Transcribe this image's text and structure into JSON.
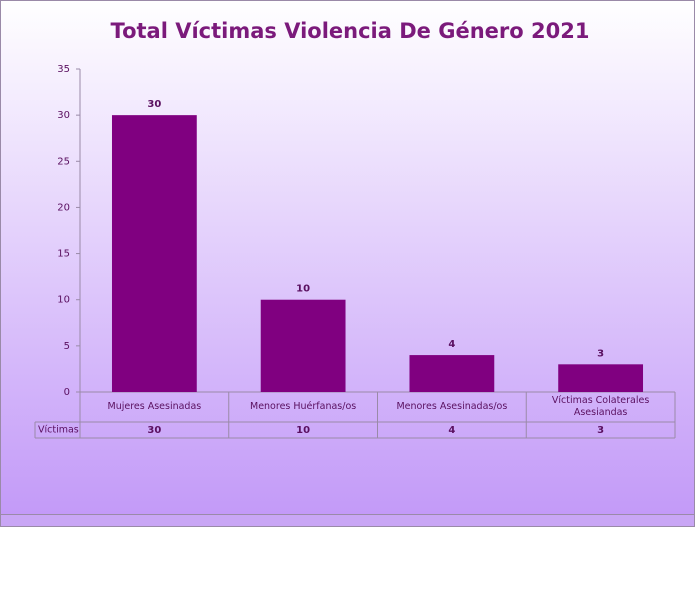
{
  "chart_data": {
    "type": "bar",
    "title": "Total Víctimas Violencia De Género 2021",
    "categories": [
      "Mujeres Asesinadas",
      "Menores Huérfanas/os",
      "Menores Asesinadas/os",
      "Víctimas Colaterales Asesiandas"
    ],
    "series": [
      {
        "name": "Víctimas",
        "color": "#800080",
        "values": [
          30,
          10,
          4,
          3
        ]
      }
    ],
    "ylim": [
      0,
      35
    ],
    "yticks": [
      0,
      5,
      10,
      15,
      20,
      25,
      30,
      35
    ],
    "grid": false
  }
}
